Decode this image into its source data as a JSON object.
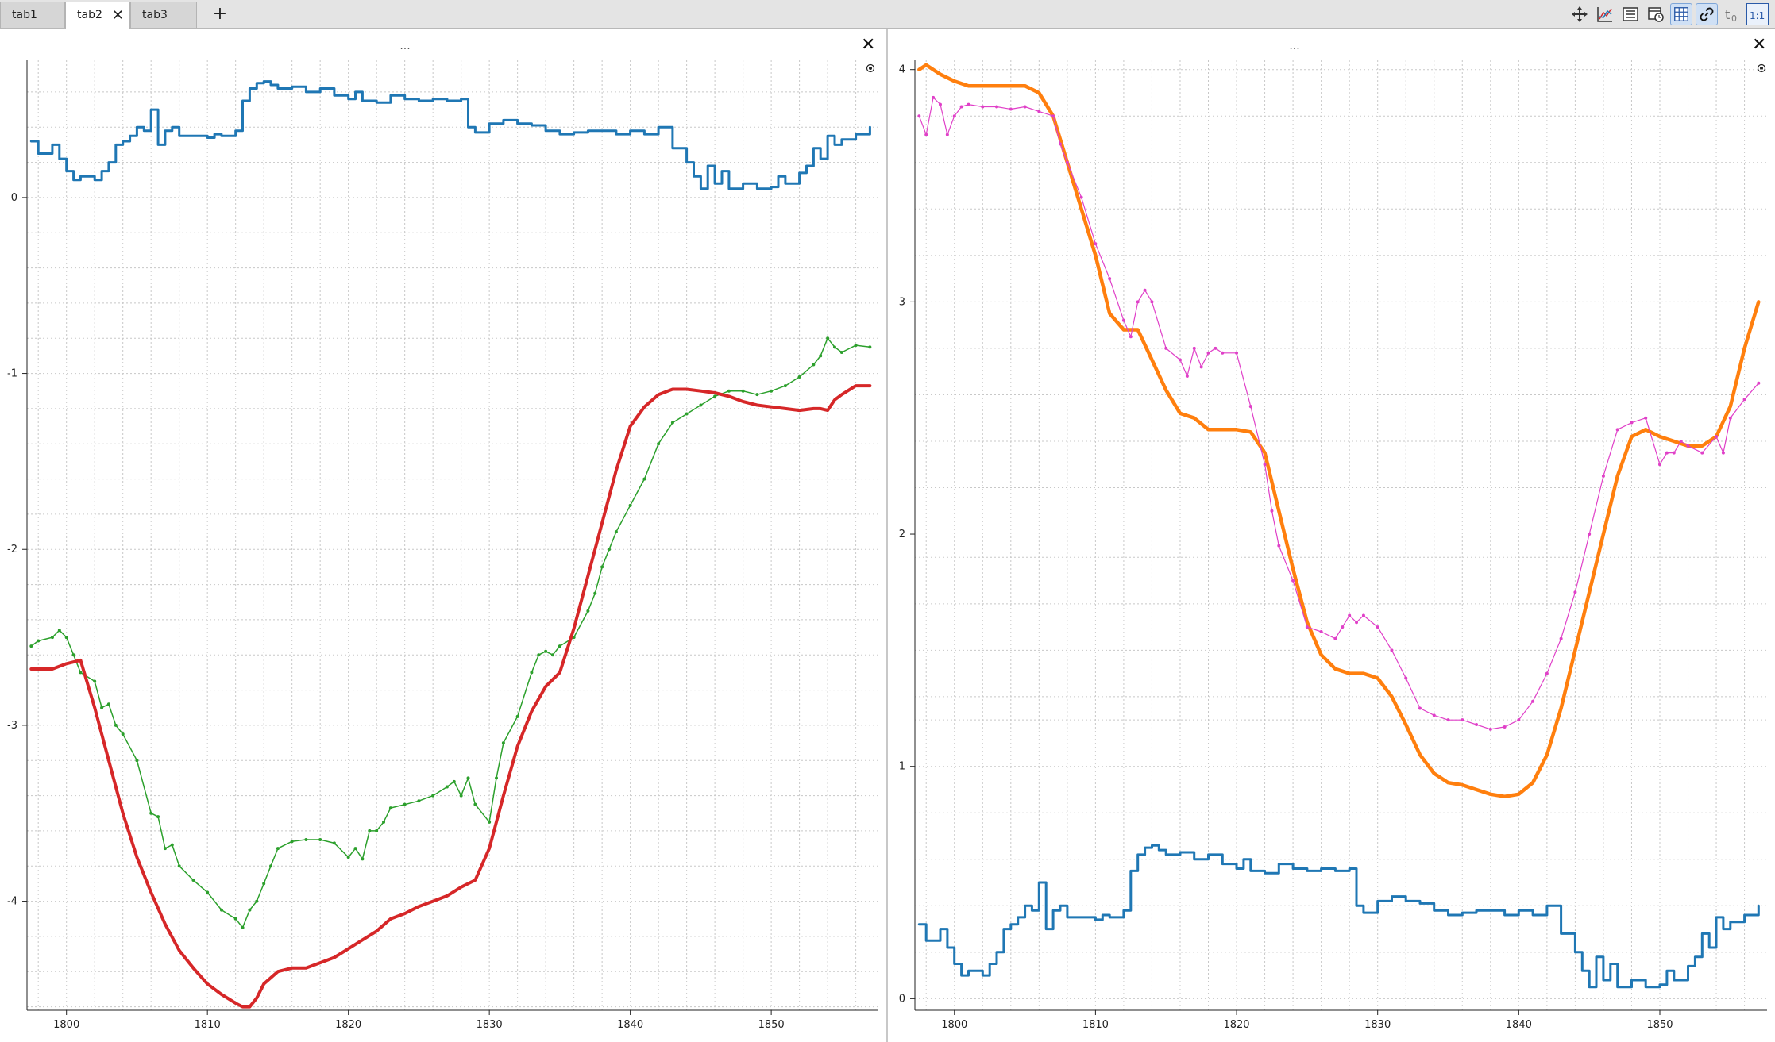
{
  "tabs": [
    {
      "label": "tab1",
      "active": false
    },
    {
      "label": "tab2",
      "active": true,
      "close": "✕"
    },
    {
      "label": "tab3",
      "active": false
    }
  ],
  "add_tab_label": "+",
  "toolbar": [
    {
      "name": "move-icon",
      "active": false
    },
    {
      "name": "curves-icon",
      "active": false
    },
    {
      "name": "legend-icon",
      "active": false
    },
    {
      "name": "time-tracker-icon",
      "active": false
    },
    {
      "name": "grid-icon",
      "active": true
    },
    {
      "name": "link-icon",
      "active": true
    },
    {
      "name": "t0-icon",
      "active": false
    },
    {
      "name": "ratio-1-1-icon",
      "active": false,
      "text": "1:1"
    }
  ],
  "panels": [
    {
      "dots": "...",
      "close": "✕"
    },
    {
      "dots": "...",
      "close": "✕"
    }
  ],
  "chart_data": [
    {
      "type": "line",
      "title": "",
      "xlabel": "",
      "ylabel": "",
      "xlim": [
        1797.2,
        1857.6
      ],
      "ylim": [
        -4.62,
        0.78
      ],
      "xticks": [
        "1800",
        "1810",
        "1820",
        "1830",
        "1840",
        "1850"
      ],
      "yticks": [
        "0",
        "-1",
        "-2",
        "-3",
        "-4"
      ],
      "grid": true,
      "series": [
        {
          "color": "#1f77b4",
          "width": 3,
          "style": "step",
          "x": [
            1797.5,
            1798,
            1799,
            1799.5,
            1800,
            1800.5,
            1801,
            1802,
            1802.5,
            1803,
            1803.5,
            1804,
            1804.5,
            1805,
            1805.5,
            1806,
            1806.5,
            1807,
            1807.5,
            1808,
            1809,
            1810,
            1810.5,
            1811,
            1812,
            1812.5,
            1813,
            1813.5,
            1814,
            1814.5,
            1815,
            1816,
            1817,
            1818,
            1819,
            1820,
            1820.5,
            1821,
            1822,
            1823,
            1824,
            1825,
            1826,
            1827,
            1828,
            1828.5,
            1829,
            1830,
            1831,
            1832,
            1833,
            1834,
            1835,
            1836,
            1837,
            1838,
            1839,
            1840,
            1841,
            1842,
            1843,
            1844,
            1844.5,
            1845,
            1845.5,
            1846,
            1846.5,
            1847,
            1848,
            1849,
            1850,
            1850.5,
            1851,
            1852,
            1852.5,
            1853,
            1853.5,
            1854,
            1854.5,
            1855,
            1856,
            1857
          ],
          "y": [
            0.32,
            0.25,
            0.3,
            0.22,
            0.15,
            0.1,
            0.12,
            0.1,
            0.15,
            0.2,
            0.3,
            0.32,
            0.35,
            0.4,
            0.38,
            0.5,
            0.3,
            0.38,
            0.4,
            0.35,
            0.35,
            0.34,
            0.36,
            0.35,
            0.38,
            0.55,
            0.62,
            0.65,
            0.66,
            0.64,
            0.62,
            0.63,
            0.6,
            0.62,
            0.58,
            0.56,
            0.6,
            0.55,
            0.54,
            0.58,
            0.56,
            0.55,
            0.56,
            0.55,
            0.56,
            0.4,
            0.37,
            0.42,
            0.44,
            0.42,
            0.41,
            0.38,
            0.36,
            0.37,
            0.38,
            0.38,
            0.36,
            0.38,
            0.36,
            0.4,
            0.28,
            0.2,
            0.12,
            0.05,
            0.18,
            0.08,
            0.15,
            0.05,
            0.08,
            0.05,
            0.06,
            0.12,
            0.08,
            0.14,
            0.18,
            0.28,
            0.22,
            0.35,
            0.3,
            0.33,
            0.36,
            0.4
          ]
        },
        {
          "color": "#2ca02c",
          "width": 1.5,
          "style": "line",
          "markers": true,
          "x": [
            1797.5,
            1798,
            1799,
            1799.5,
            1800,
            1800.5,
            1801,
            1802,
            1802.5,
            1803,
            1803.5,
            1804,
            1805,
            1806,
            1806.5,
            1807,
            1807.5,
            1808,
            1809,
            1810,
            1811,
            1812,
            1812.5,
            1813,
            1813.5,
            1814,
            1814.5,
            1815,
            1816,
            1817,
            1818,
            1819,
            1820,
            1820.5,
            1821,
            1821.5,
            1822,
            1822.5,
            1823,
            1824,
            1825,
            1826,
            1827,
            1827.5,
            1828,
            1828.5,
            1829,
            1830,
            1830.5,
            1831,
            1832,
            1833,
            1833.5,
            1834,
            1834.5,
            1835,
            1836,
            1837,
            1837.5,
            1838,
            1838.5,
            1839,
            1840,
            1841,
            1842,
            1843,
            1844,
            1845,
            1846,
            1847,
            1848,
            1849,
            1850,
            1851,
            1852,
            1853,
            1853.5,
            1854,
            1854.5,
            1855,
            1856,
            1857
          ],
          "y": [
            -2.55,
            -2.52,
            -2.5,
            -2.46,
            -2.5,
            -2.6,
            -2.7,
            -2.75,
            -2.9,
            -2.88,
            -3.0,
            -3.05,
            -3.2,
            -3.5,
            -3.52,
            -3.7,
            -3.68,
            -3.8,
            -3.88,
            -3.95,
            -4.05,
            -4.1,
            -4.15,
            -4.05,
            -4.0,
            -3.9,
            -3.8,
            -3.7,
            -3.66,
            -3.65,
            -3.65,
            -3.67,
            -3.75,
            -3.7,
            -3.76,
            -3.6,
            -3.6,
            -3.55,
            -3.47,
            -3.45,
            -3.43,
            -3.4,
            -3.35,
            -3.32,
            -3.4,
            -3.3,
            -3.45,
            -3.55,
            -3.3,
            -3.1,
            -2.95,
            -2.7,
            -2.6,
            -2.58,
            -2.6,
            -2.55,
            -2.5,
            -2.35,
            -2.25,
            -2.1,
            -2.0,
            -1.9,
            -1.75,
            -1.6,
            -1.4,
            -1.28,
            -1.23,
            -1.18,
            -1.13,
            -1.1,
            -1.1,
            -1.12,
            -1.1,
            -1.07,
            -1.02,
            -0.95,
            -0.9,
            -0.8,
            -0.85,
            -0.88,
            -0.84,
            -0.85
          ]
        },
        {
          "color": "#d62728",
          "width": 4,
          "style": "line",
          "x": [
            1797.5,
            1798,
            1799,
            1800,
            1801,
            1802,
            1803,
            1804,
            1805,
            1806,
            1807,
            1808,
            1809,
            1810,
            1811,
            1812,
            1812.5,
            1813,
            1813.5,
            1814,
            1815,
            1816,
            1817,
            1818,
            1819,
            1820,
            1821,
            1822,
            1823,
            1824,
            1825,
            1826,
            1827,
            1828,
            1829,
            1830,
            1831,
            1832,
            1833,
            1834,
            1835,
            1836,
            1837,
            1838,
            1839,
            1840,
            1841,
            1842,
            1843,
            1844,
            1845,
            1846,
            1847,
            1848,
            1849,
            1850,
            1851,
            1852,
            1853,
            1853.5,
            1854,
            1854.5,
            1855,
            1856,
            1857
          ],
          "y": [
            -2.68,
            -2.68,
            -2.68,
            -2.65,
            -2.63,
            -2.9,
            -3.2,
            -3.5,
            -3.75,
            -3.95,
            -4.13,
            -4.28,
            -4.38,
            -4.47,
            -4.53,
            -4.58,
            -4.6,
            -4.6,
            -4.55,
            -4.47,
            -4.4,
            -4.38,
            -4.38,
            -4.35,
            -4.32,
            -4.27,
            -4.22,
            -4.17,
            -4.1,
            -4.07,
            -4.03,
            -4.0,
            -3.97,
            -3.92,
            -3.88,
            -3.7,
            -3.4,
            -3.12,
            -2.92,
            -2.78,
            -2.7,
            -2.45,
            -2.15,
            -1.85,
            -1.55,
            -1.3,
            -1.19,
            -1.12,
            -1.09,
            -1.09,
            -1.1,
            -1.11,
            -1.13,
            -1.16,
            -1.18,
            -1.19,
            -1.2,
            -1.21,
            -1.2,
            -1.2,
            -1.21,
            -1.15,
            -1.12,
            -1.07,
            -1.07
          ]
        }
      ]
    },
    {
      "type": "line",
      "title": "",
      "xlabel": "",
      "ylabel": "",
      "xlim": [
        1797.2,
        1857.6
      ],
      "ylim": [
        -0.05,
        4.04
      ],
      "xticks": [
        "1800",
        "1810",
        "1820",
        "1830",
        "1840",
        "1850"
      ],
      "yticks": [
        "0",
        "1",
        "2",
        "3",
        "4"
      ],
      "grid": true,
      "series": [
        {
          "color": "#ff7f0e",
          "width": 4.5,
          "style": "line",
          "x": [
            1797.5,
            1798,
            1799,
            1800,
            1801,
            1802,
            1803,
            1804,
            1805,
            1806,
            1807,
            1808,
            1809,
            1810,
            1811,
            1812,
            1813,
            1814,
            1815,
            1816,
            1817,
            1818,
            1819,
            1820,
            1821,
            1822,
            1823,
            1824,
            1825,
            1826,
            1827,
            1828,
            1829,
            1830,
            1831,
            1832,
            1833,
            1834,
            1835,
            1836,
            1837,
            1838,
            1839,
            1840,
            1841,
            1842,
            1843,
            1844,
            1845,
            1846,
            1847,
            1848,
            1849,
            1850,
            1851,
            1852,
            1853,
            1854,
            1855,
            1856,
            1857
          ],
          "y": [
            4.0,
            4.02,
            3.98,
            3.95,
            3.93,
            3.93,
            3.93,
            3.93,
            3.93,
            3.9,
            3.8,
            3.6,
            3.4,
            3.2,
            2.95,
            2.88,
            2.88,
            2.75,
            2.62,
            2.52,
            2.5,
            2.45,
            2.45,
            2.45,
            2.44,
            2.35,
            2.1,
            1.85,
            1.62,
            1.48,
            1.42,
            1.4,
            1.4,
            1.38,
            1.3,
            1.18,
            1.05,
            0.97,
            0.93,
            0.92,
            0.9,
            0.88,
            0.87,
            0.88,
            0.93,
            1.05,
            1.25,
            1.5,
            1.75,
            2.0,
            2.25,
            2.42,
            2.45,
            2.42,
            2.4,
            2.38,
            2.38,
            2.42,
            2.55,
            2.8,
            3.0
          ]
        },
        {
          "color": "#e040c8",
          "width": 1.2,
          "style": "line",
          "markers": true,
          "x": [
            1797.5,
            1798,
            1798.5,
            1799,
            1799.5,
            1800,
            1800.5,
            1801,
            1802,
            1803,
            1804,
            1805,
            1806,
            1807,
            1807.5,
            1808,
            1809,
            1810,
            1811,
            1812,
            1812.5,
            1813,
            1813.5,
            1814,
            1815,
            1816,
            1816.5,
            1817,
            1817.5,
            1818,
            1818.5,
            1819,
            1820,
            1821,
            1822,
            1822.5,
            1823,
            1824,
            1825,
            1826,
            1827,
            1827.5,
            1828,
            1828.5,
            1829,
            1830,
            1831,
            1832,
            1833,
            1834,
            1835,
            1836,
            1837,
            1838,
            1839,
            1840,
            1841,
            1842,
            1843,
            1844,
            1845,
            1846,
            1847,
            1848,
            1849,
            1850,
            1850.5,
            1851,
            1851.5,
            1852,
            1853,
            1854,
            1854.5,
            1855,
            1856,
            1857
          ],
          "y": [
            3.8,
            3.72,
            3.88,
            3.85,
            3.72,
            3.8,
            3.84,
            3.85,
            3.84,
            3.84,
            3.83,
            3.84,
            3.82,
            3.8,
            3.68,
            3.6,
            3.45,
            3.25,
            3.1,
            2.92,
            2.85,
            3.0,
            3.05,
            3.0,
            2.8,
            2.75,
            2.68,
            2.8,
            2.72,
            2.78,
            2.8,
            2.78,
            2.78,
            2.55,
            2.3,
            2.1,
            1.95,
            1.8,
            1.6,
            1.58,
            1.55,
            1.6,
            1.65,
            1.62,
            1.65,
            1.6,
            1.5,
            1.38,
            1.25,
            1.22,
            1.2,
            1.2,
            1.18,
            1.16,
            1.17,
            1.2,
            1.28,
            1.4,
            1.55,
            1.75,
            2.0,
            2.25,
            2.45,
            2.48,
            2.5,
            2.3,
            2.35,
            2.35,
            2.4,
            2.38,
            2.35,
            2.42,
            2.35,
            2.5,
            2.58,
            2.65
          ]
        },
        {
          "color": "#1f77b4",
          "width": 3,
          "style": "step",
          "x": [
            1797.5,
            1798,
            1799,
            1799.5,
            1800,
            1800.5,
            1801,
            1802,
            1802.5,
            1803,
            1803.5,
            1804,
            1804.5,
            1805,
            1805.5,
            1806,
            1806.5,
            1807,
            1807.5,
            1808,
            1809,
            1810,
            1810.5,
            1811,
            1812,
            1812.5,
            1813,
            1813.5,
            1814,
            1814.5,
            1815,
            1816,
            1817,
            1818,
            1819,
            1820,
            1820.5,
            1821,
            1822,
            1823,
            1824,
            1825,
            1826,
            1827,
            1828,
            1828.5,
            1829,
            1830,
            1831,
            1832,
            1833,
            1834,
            1835,
            1836,
            1837,
            1838,
            1839,
            1840,
            1841,
            1842,
            1843,
            1844,
            1844.5,
            1845,
            1845.5,
            1846,
            1846.5,
            1847,
            1848,
            1849,
            1850,
            1850.5,
            1851,
            1852,
            1852.5,
            1853,
            1853.5,
            1854,
            1854.5,
            1855,
            1856,
            1857
          ],
          "y": [
            0.32,
            0.25,
            0.3,
            0.22,
            0.15,
            0.1,
            0.12,
            0.1,
            0.15,
            0.2,
            0.3,
            0.32,
            0.35,
            0.4,
            0.38,
            0.5,
            0.3,
            0.38,
            0.4,
            0.35,
            0.35,
            0.34,
            0.36,
            0.35,
            0.38,
            0.55,
            0.62,
            0.65,
            0.66,
            0.64,
            0.62,
            0.63,
            0.6,
            0.62,
            0.58,
            0.56,
            0.6,
            0.55,
            0.54,
            0.58,
            0.56,
            0.55,
            0.56,
            0.55,
            0.56,
            0.4,
            0.37,
            0.42,
            0.44,
            0.42,
            0.41,
            0.38,
            0.36,
            0.37,
            0.38,
            0.38,
            0.36,
            0.38,
            0.36,
            0.4,
            0.28,
            0.2,
            0.12,
            0.05,
            0.18,
            0.08,
            0.15,
            0.05,
            0.08,
            0.05,
            0.06,
            0.12,
            0.08,
            0.14,
            0.18,
            0.28,
            0.22,
            0.35,
            0.3,
            0.33,
            0.36,
            0.4
          ]
        }
      ]
    }
  ]
}
